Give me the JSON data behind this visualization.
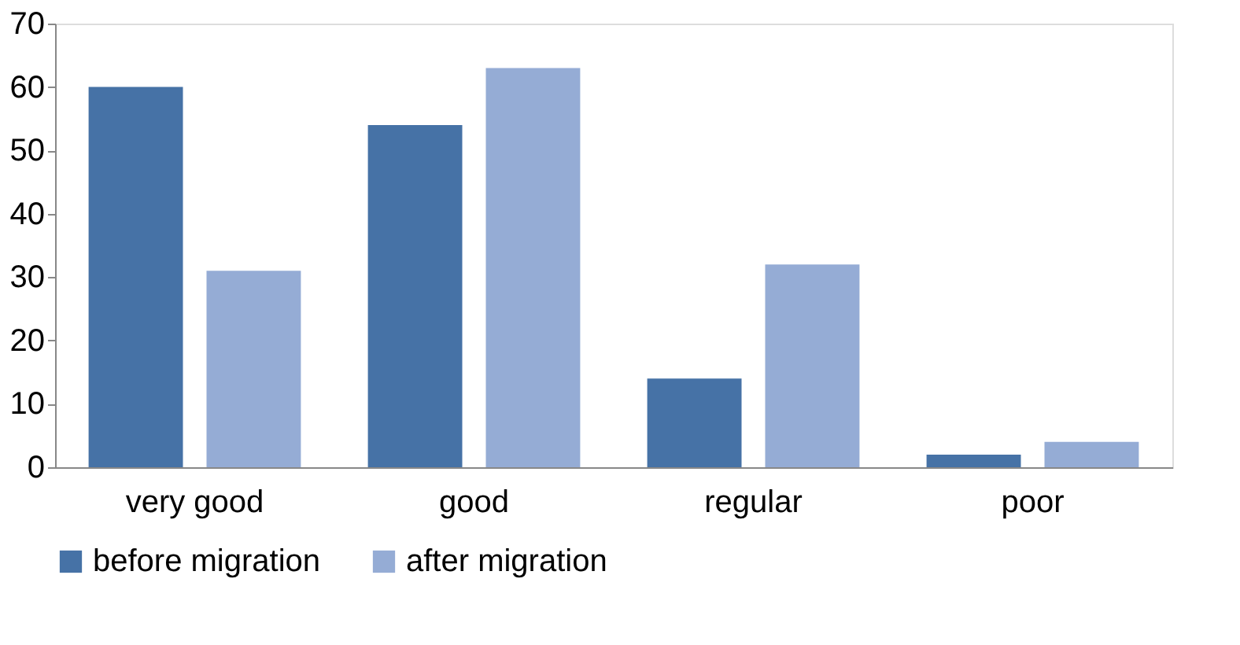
{
  "chart_data": {
    "type": "bar",
    "categories": [
      "very good",
      "good",
      "regular",
      "poor"
    ],
    "series": [
      {
        "name": "before migration",
        "color": "#4672a6",
        "values": [
          60,
          54,
          14,
          2
        ]
      },
      {
        "name": "after migration",
        "color": "#95acd5",
        "values": [
          31,
          63,
          32,
          4
        ]
      }
    ],
    "ylim": [
      0,
      70
    ],
    "yticks": [
      0,
      10,
      20,
      30,
      40,
      50,
      60,
      70
    ],
    "grid": false,
    "legend": "bottom"
  }
}
